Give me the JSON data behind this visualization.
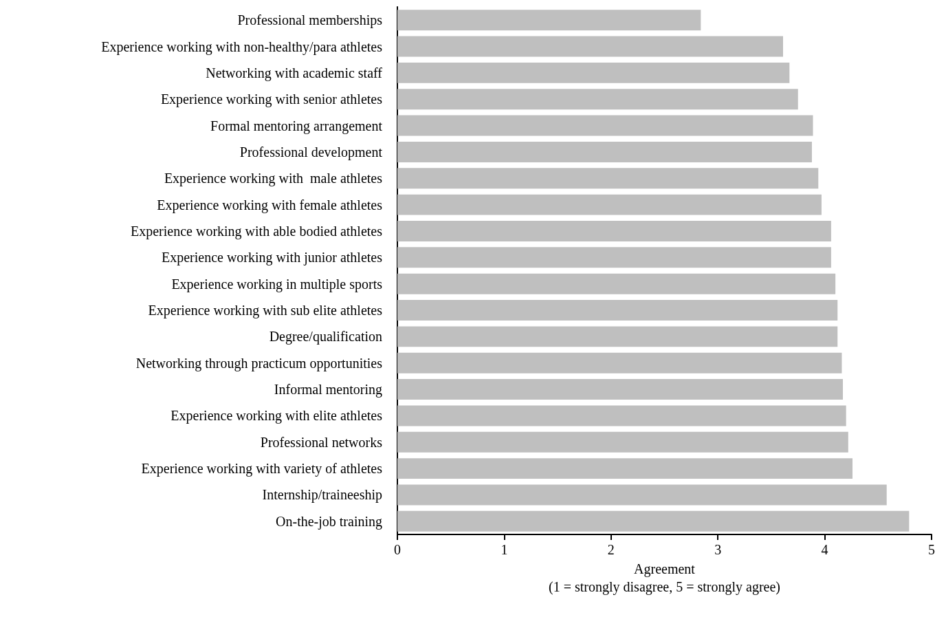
{
  "chart_data": {
    "type": "bar",
    "orientation": "horizontal",
    "xlabel": "Agreement\n(1 = strongly disagree, 5 = strongly agree)",
    "categories": [
      "Professional memberships",
      "Experience working with non-healthy/para athletes",
      "Networking with academic staff",
      "Experience working with senior athletes",
      "Formal mentoring arrangement",
      "Professional development",
      "Experience working with  male athletes",
      "Experience working with female athletes",
      "Experience working with able bodied athletes",
      "Experience working with junior athletes",
      "Experience working in multiple sports",
      "Experience working with sub elite athletes",
      "Degree/qualification",
      "Networking through practicum opportunities",
      "Informal mentoring",
      "Experience working with elite athletes",
      "Professional networks",
      "Experience working with variety of athletes",
      "Internship/traineeship",
      "On-the-job training"
    ],
    "values": [
      2.84,
      3.61,
      3.67,
      3.75,
      3.89,
      3.88,
      3.94,
      3.97,
      4.06,
      4.06,
      4.1,
      4.12,
      4.12,
      4.16,
      4.17,
      4.2,
      4.22,
      4.26,
      4.58,
      4.79
    ],
    "color": "#bfbfbf",
    "xlim": [
      0,
      5
    ],
    "xticks": [
      0,
      1,
      2,
      3,
      4,
      5
    ],
    "grid": false
  }
}
